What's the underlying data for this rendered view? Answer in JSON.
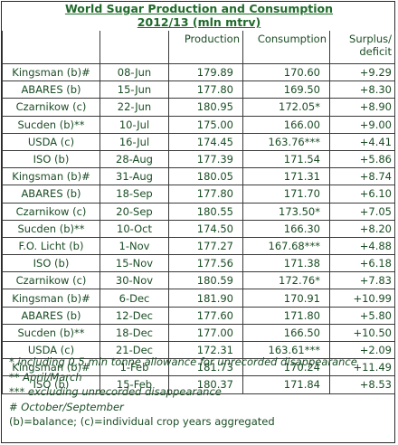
{
  "title": "World Sugar Production and Consumption",
  "subtitle": "2012/13  (mln mtrv)",
  "columns": {
    "production": "Production",
    "consumption": "Consumption",
    "surplus_line1": "Surplus/",
    "surplus_line2": "deficit"
  },
  "rows": [
    {
      "source": "Kingsman (b)#",
      "date": "08-Jun",
      "production": "179.89",
      "consumption": "170.60",
      "surplus": "+9.29"
    },
    {
      "source": "ABARES (b)",
      "date": "15-Jun",
      "production": "177.80",
      "consumption": "169.50",
      "surplus": "+8.30"
    },
    {
      "source": "Czarnikow (c)",
      "date": "22-Jun",
      "production": "180.95",
      "consumption": "172.05*",
      "surplus": "+8.90"
    },
    {
      "source": "Sucden (b)**",
      "date": "10-Jul",
      "production": "175.00",
      "consumption": "166.00",
      "surplus": "+9.00"
    },
    {
      "source": "USDA (c)",
      "date": "16-Jul",
      "production": "174.45",
      "consumption": "163.76***",
      "surplus": "+4.41"
    },
    {
      "source": "ISO (b)",
      "date": "28-Aug",
      "production": "177.39",
      "consumption": "171.54",
      "surplus": "+5.86"
    },
    {
      "source": "Kingsman (b)#",
      "date": "31-Aug",
      "production": "180.05",
      "consumption": "171.31",
      "surplus": "+8.74"
    },
    {
      "source": "ABARES (b)",
      "date": "18-Sep",
      "production": "177.80",
      "consumption": "171.70",
      "surplus": "+6.10"
    },
    {
      "source": "Czarnikow (c)",
      "date": "20-Sep",
      "production": "180.55",
      "consumption": "173.50*",
      "surplus": "+7.05"
    },
    {
      "source": "Sucden (b)**",
      "date": "10-Oct",
      "production": "174.50",
      "consumption": "166.30",
      "surplus": "+8.20"
    },
    {
      "source": "F.O. Licht (b)",
      "date": "1-Nov",
      "production": "177.27",
      "consumption": "167.68***",
      "surplus": "+4.88"
    },
    {
      "source": "ISO (b)",
      "date": "15-Nov",
      "production": "177.56",
      "consumption": "171.38",
      "surplus": "+6.18"
    },
    {
      "source": "Czarnikow (c)",
      "date": "30-Nov",
      "production": "180.59",
      "consumption": "172.76*",
      "surplus": "+7.83"
    },
    {
      "source": "Kingsman (b)#",
      "date": "6-Dec",
      "production": "181.90",
      "consumption": "170.91",
      "surplus": "+10.99"
    },
    {
      "source": "ABARES (b)",
      "date": "12-Dec",
      "production": "177.60",
      "consumption": "171.80",
      "surplus": "+5.80"
    },
    {
      "source": "Sucden (b)**",
      "date": "18-Dec",
      "production": "177.00",
      "consumption": "166.50",
      "surplus": "+10.50"
    },
    {
      "source": "USDA (c)",
      "date": "21-Dec",
      "production": "172.31",
      "consumption": "163.61***",
      "surplus": "+2.09"
    },
    {
      "source": "Kingsman (b)#",
      "date": "1-Feb",
      "production": "181.73",
      "consumption": "170.24",
      "surplus": "+11.49"
    },
    {
      "source": "ISO (b)",
      "date": "15-Feb",
      "production": "180.37",
      "consumption": "171.84",
      "surplus": "+8.53"
    }
  ],
  "notes": [
    "*     including 0.5 mln tonne allowance for unrecorded disappearance",
    "**    April/March",
    "*** excluding unrecorded disappearance",
    "#        October/September",
    "(b)=balance; (c)=individual crop years aggregated"
  ]
}
